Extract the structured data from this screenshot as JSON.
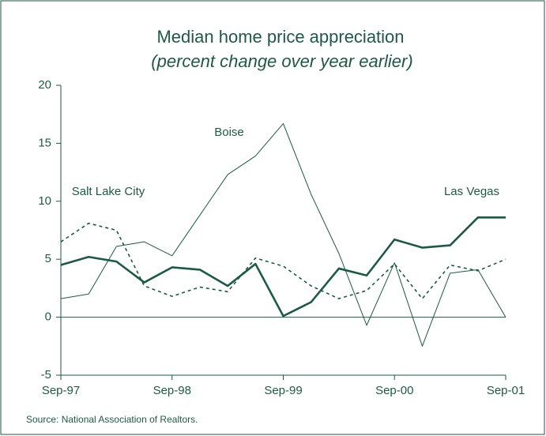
{
  "chart_data": {
    "type": "line",
    "title": "Median home price appreciation",
    "subtitle": "(percent change over year earlier)",
    "source": "Source: National Association of Realtors.",
    "categories": [
      "Sep-97",
      null,
      null,
      null,
      "Sep-98",
      null,
      null,
      null,
      "Sep-99",
      null,
      null,
      null,
      "Sep-00",
      null,
      null,
      null,
      "Sep-01"
    ],
    "series": [
      {
        "name": "Las Vegas",
        "color": "#1b5a43",
        "style": "bold",
        "values": [
          4.5,
          5.2,
          4.8,
          3.0,
          4.3,
          4.1,
          2.7,
          4.6,
          0.1,
          1.3,
          4.2,
          3.6,
          6.7,
          6.0,
          6.2,
          8.6,
          8.6
        ]
      },
      {
        "name": "Boise",
        "color": "#1b5a43",
        "style": "thin",
        "values": [
          1.6,
          2.0,
          6.1,
          6.5,
          5.3,
          8.8,
          12.3,
          13.9,
          16.7,
          10.6,
          5.5,
          -0.7,
          4.7,
          -2.5,
          3.8,
          4.1,
          0.0
        ]
      },
      {
        "name": "Salt Lake City",
        "color": "#1b5a43",
        "style": "dashed",
        "values": [
          6.5,
          8.1,
          7.5,
          2.7,
          1.8,
          2.6,
          2.2,
          5.1,
          4.4,
          2.7,
          1.6,
          2.3,
          4.6,
          1.6,
          4.5,
          4.0,
          5.0
        ]
      }
    ],
    "ylim": [
      -5,
      20
    ],
    "yticks": [
      -5,
      0,
      5,
      10,
      15,
      20
    ],
    "zero_line": true
  }
}
